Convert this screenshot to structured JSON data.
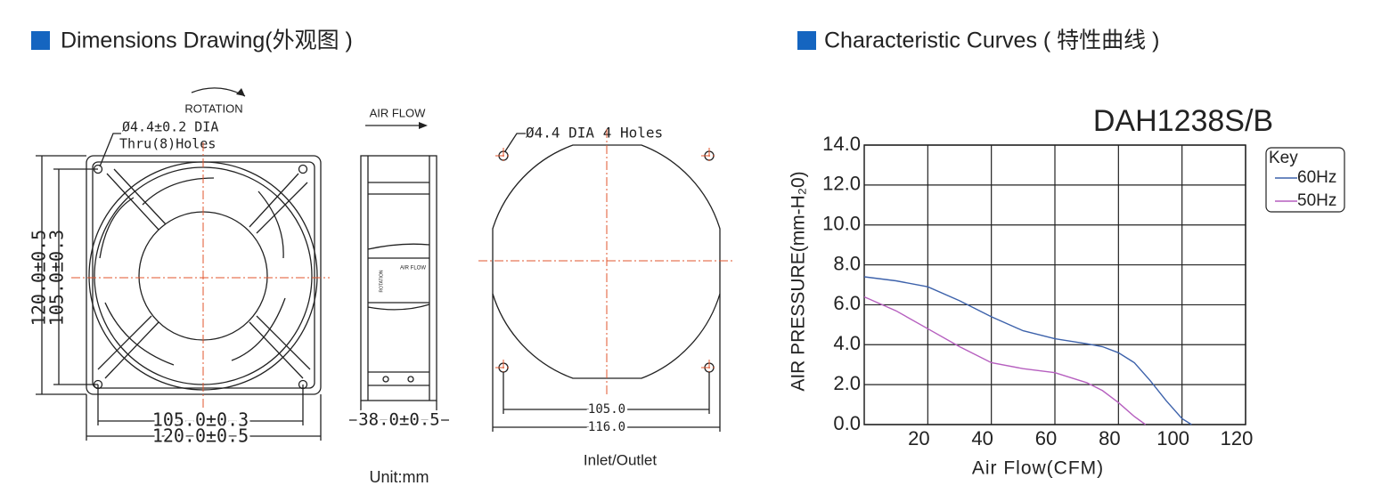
{
  "left_section": {
    "title": "Dimensions Drawing(外观图 )",
    "front_view": {
      "rotation": "ROTATION",
      "hole_note_1": "Ø4.4±0.2 DIA",
      "hole_note_2": "Thru(8)Holes",
      "dim_height_outer": "120.0±0.5",
      "dim_height_inner": "105.0±0.3",
      "dim_width_inner": "105.0±0.3",
      "dim_width_outer": "120.0±0.5"
    },
    "side_view": {
      "air_flow": "AIR FLOW",
      "sticker_air_flow": "AIR FLOW",
      "sticker_rotation": "ROTATION",
      "depth": "38.0±0.5",
      "unit": "Unit:mm"
    },
    "panel_view": {
      "hole_note": "Ø4.4  DIA  4  Holes",
      "dim_inner": "105.0",
      "dim_outer": "116.0",
      "caption": "Inlet/Outlet"
    }
  },
  "right_section": {
    "title": "Characteristic Curves ( 特性曲线 )"
  },
  "chart_data": {
    "type": "line",
    "title": "DAH1238S/B",
    "x_label": "Air Flow(CFM)",
    "y_label": "AIR PRESSURE(mm-H₂0)",
    "legend_title": "Key",
    "legend_position": "right",
    "grid": true,
    "xlim": [
      0,
      120
    ],
    "xticks": [
      20,
      40,
      60,
      80,
      100,
      120
    ],
    "ylim": [
      0,
      14
    ],
    "yticks": [
      {
        "value": 0,
        "label": "0.0"
      },
      {
        "value": 2,
        "label": "2.0"
      },
      {
        "value": 4,
        "label": "4.0"
      },
      {
        "value": 6,
        "label": "6.0"
      },
      {
        "value": 8,
        "label": "8.0"
      },
      {
        "value": 10,
        "label": "10.0"
      },
      {
        "value": 12,
        "label": "12.0"
      },
      {
        "value": 14,
        "label": "14.0"
      }
    ],
    "series": [
      {
        "name": "60Hz",
        "color": "#3d62ab",
        "x": [
          0,
          10,
          20,
          30,
          40,
          50,
          60,
          70,
          75,
          80,
          85,
          90,
          95,
          100,
          103
        ],
        "values": [
          7.4,
          7.2,
          6.9,
          6.2,
          5.4,
          4.7,
          4.3,
          4.05,
          3.9,
          3.6,
          3.1,
          2.2,
          1.2,
          0.3,
          0
        ]
      },
      {
        "name": "50Hz",
        "color": "#b65fbf",
        "x": [
          0,
          10,
          20,
          30,
          40,
          50,
          60,
          70,
          75,
          80,
          85,
          88.5
        ],
        "values": [
          6.4,
          5.7,
          4.8,
          3.9,
          3.1,
          2.8,
          2.6,
          2.1,
          1.7,
          1.1,
          0.4,
          0
        ]
      }
    ]
  }
}
